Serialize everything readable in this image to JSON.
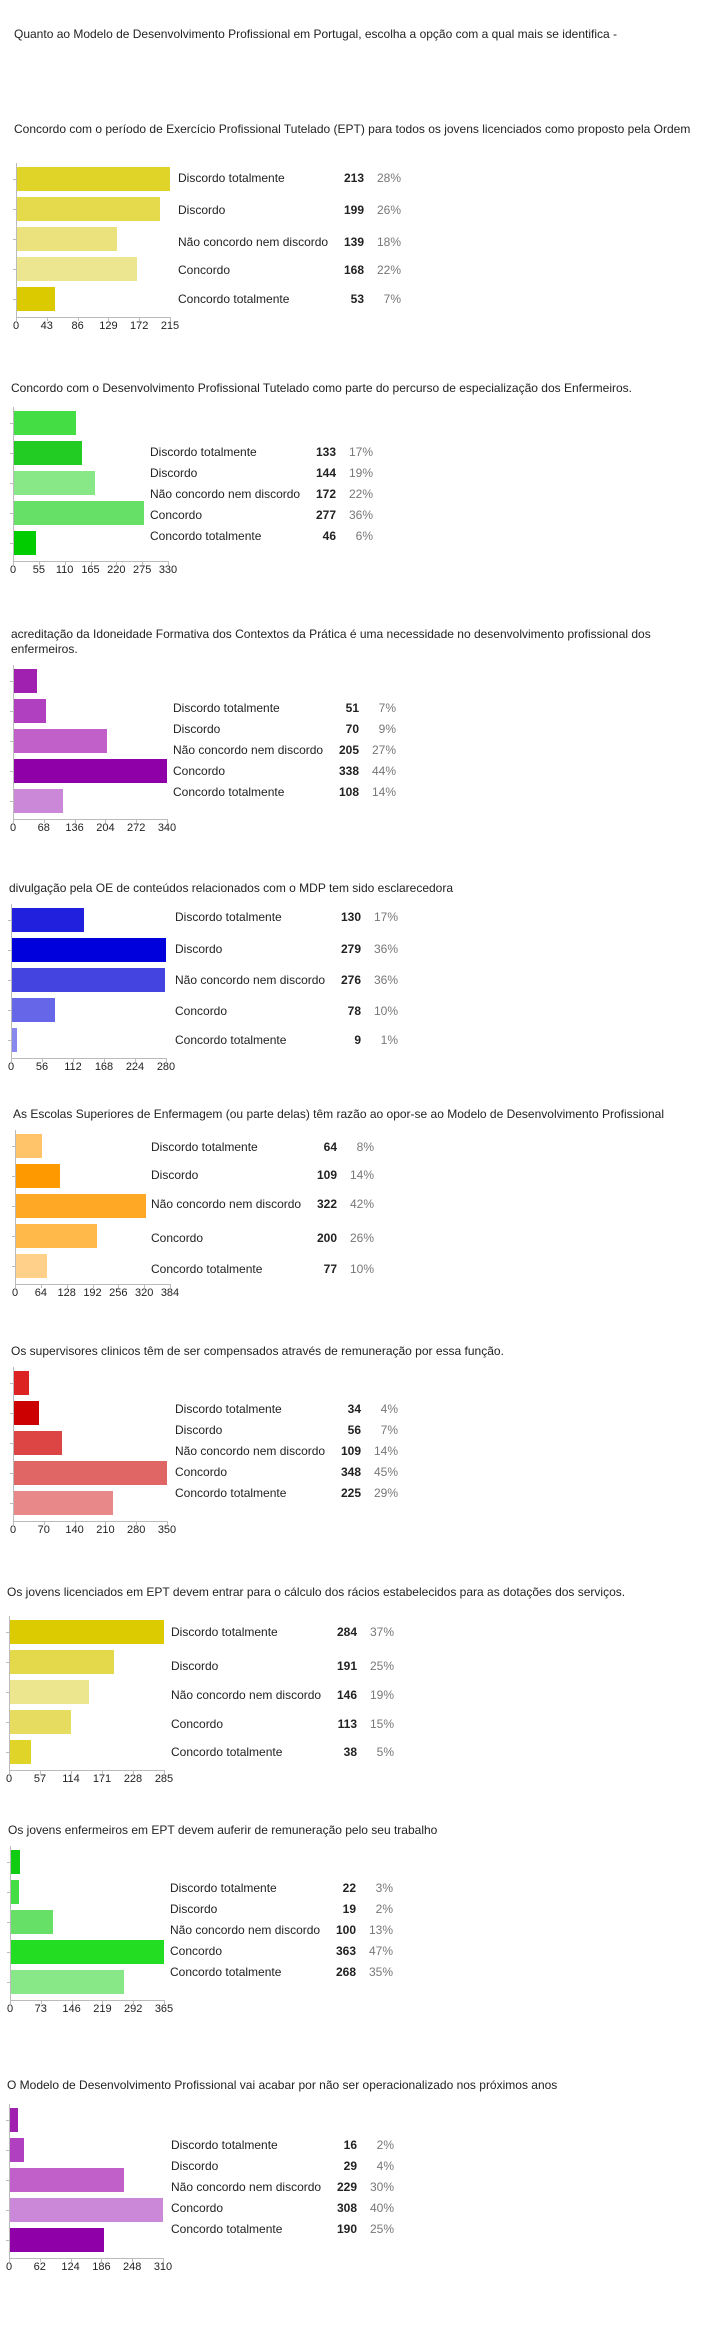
{
  "main_title": "Quanto ao Modelo de Desenvolvimento Profissional em Portugal, escolha a opção com a qual mais se identifica -",
  "chart_data": [
    {
      "type": "bar",
      "orientation": "horizontal",
      "title": "Concordo com o período de Exercício Profissional Tutelado (EPT) para todos os jovens licenciados como proposto pela Ordem",
      "categories": [
        "Discordo totalmente",
        "Discordo",
        "Não concordo nem discordo",
        "Concordo",
        "Concordo totalmente"
      ],
      "values": [
        213,
        199,
        139,
        168,
        53
      ],
      "percents": [
        "28%",
        "26%",
        "18%",
        "22%",
        "7%"
      ],
      "ticks": [
        "0",
        "43",
        "86",
        "129",
        "172",
        "215"
      ],
      "xlim": [
        0,
        215
      ],
      "grid": false,
      "colors": [
        "#e1d428",
        "#e5da4c",
        "#ebe27d",
        "#ede691",
        "#dcca00"
      ]
    },
    {
      "type": "bar",
      "orientation": "horizontal",
      "title": "Concordo com o Desenvolvimento Profissional Tutelado como parte do percurso de especialização dos Enfermeiros.",
      "categories": [
        "Discordo totalmente",
        "Discordo",
        "Não concordo nem discordo",
        "Concordo",
        "Concordo totalmente"
      ],
      "values": [
        133,
        144,
        172,
        277,
        46
      ],
      "percents": [
        "17%",
        "19%",
        "22%",
        "36%",
        "6%"
      ],
      "ticks": [
        "0",
        "55",
        "110",
        "165",
        "220",
        "275",
        "330"
      ],
      "xlim": [
        0,
        330
      ],
      "grid": false,
      "colors": [
        "#44dd44",
        "#22cc22",
        "#88e888",
        "#66e066",
        "#00cc00"
      ]
    },
    {
      "type": "bar",
      "orientation": "horizontal",
      "title": "acreditação da Idoneidade Formativa dos Contextos da Prática é uma necessidade no desenvolvimento profissional dos enfermeiros.",
      "categories": [
        "Discordo totalmente",
        "Discordo",
        "Não concordo nem discordo",
        "Concordo",
        "Concordo totalmente"
      ],
      "values": [
        51,
        70,
        205,
        338,
        108
      ],
      "percents": [
        "7%",
        "9%",
        "27%",
        "44%",
        "14%"
      ],
      "ticks": [
        "0",
        "68",
        "136",
        "204",
        "272",
        "340"
      ],
      "xlim": [
        0,
        340
      ],
      "grid": false,
      "colors": [
        "#a020b0",
        "#b040c0",
        "#c060c8",
        "#9000a8",
        "#cc88d8"
      ]
    },
    {
      "type": "bar",
      "orientation": "horizontal",
      "title": "divulgação pela OE de conteúdos relacionados com o MDP tem sido esclarecedora",
      "categories": [
        "Discordo totalmente",
        "Discordo",
        "Não concordo nem discordo",
        "Concordo",
        "Concordo totalmente"
      ],
      "values": [
        130,
        279,
        276,
        78,
        9
      ],
      "percents": [
        "17%",
        "36%",
        "36%",
        "10%",
        "1%"
      ],
      "ticks": [
        "0",
        "56",
        "112",
        "168",
        "224",
        "280"
      ],
      "xlim": [
        0,
        280
      ],
      "grid": false,
      "colors": [
        "#2020dd",
        "#0000dd",
        "#4444e0",
        "#6666e8",
        "#8888ee"
      ]
    },
    {
      "type": "bar",
      "orientation": "horizontal",
      "title": "As Escolas Superiores de Enfermagem (ou parte delas) têm razão ao opor-se ao Modelo de Desenvolvimento Profissional",
      "categories": [
        "Discordo totalmente",
        "Discordo",
        "Não concordo nem discordo",
        "Concordo",
        "Concordo totalmente"
      ],
      "values": [
        64,
        109,
        322,
        200,
        77
      ],
      "percents": [
        "8%",
        "14%",
        "42%",
        "26%",
        "10%"
      ],
      "ticks": [
        "0",
        "64",
        "128",
        "192",
        "256",
        "320",
        "384"
      ],
      "xlim": [
        0,
        384
      ],
      "grid": false,
      "colors": [
        "#ffc46a",
        "#ff9900",
        "#ffa826",
        "#ffb84a",
        "#ffd08a"
      ]
    },
    {
      "type": "bar",
      "orientation": "horizontal",
      "title": "Os supervisores clinicos têm de ser compensados através de remuneração por essa função.",
      "categories": [
        "Discordo totalmente",
        "Discordo",
        "Não concordo nem discordo",
        "Concordo",
        "Concordo totalmente"
      ],
      "values": [
        34,
        56,
        109,
        348,
        225
      ],
      "percents": [
        "4%",
        "7%",
        "14%",
        "45%",
        "29%"
      ],
      "ticks": [
        "0",
        "70",
        "140",
        "210",
        "280",
        "350"
      ],
      "xlim": [
        0,
        350
      ],
      "grid": false,
      "colors": [
        "#dd2222",
        "#cc0000",
        "#dd4444",
        "#e06666",
        "#e88888"
      ]
    },
    {
      "type": "bar",
      "orientation": "horizontal",
      "title": "Os jovens licenciados em EPT devem entrar para o cálculo dos rácios estabelecidos para as dotações dos serviços.",
      "categories": [
        "Discordo totalmente",
        "Discordo",
        "Não concordo nem discordo",
        "Concordo",
        "Concordo totalmente"
      ],
      "values": [
        284,
        191,
        146,
        113,
        38
      ],
      "percents": [
        "37%",
        "25%",
        "19%",
        "15%",
        "5%"
      ],
      "ticks": [
        "0",
        "57",
        "114",
        "171",
        "228",
        "285"
      ],
      "xlim": [
        0,
        285
      ],
      "grid": false,
      "colors": [
        "#dccb00",
        "#e3d94a",
        "#ece68e",
        "#e6dc60",
        "#e1d428"
      ]
    },
    {
      "type": "bar",
      "orientation": "horizontal",
      "title": "Os jovens enfermeiros em EPT devem auferir de remuneração pelo seu trabalho",
      "categories": [
        "Discordo totalmente",
        "Discordo",
        "Não concordo nem discordo",
        "Concordo",
        "Concordo totalmente"
      ],
      "values": [
        22,
        19,
        100,
        363,
        268
      ],
      "percents": [
        "3%",
        "2%",
        "13%",
        "47%",
        "35%"
      ],
      "ticks": [
        "0",
        "73",
        "146",
        "219",
        "292",
        "365"
      ],
      "xlim": [
        0,
        365
      ],
      "grid": false,
      "colors": [
        "#11cc11",
        "#44dd44",
        "#66e066",
        "#22dd22",
        "#88e888"
      ]
    },
    {
      "type": "bar",
      "orientation": "horizontal",
      "title": "O Modelo de Desenvolvimento Profissional vai acabar por não ser operacionalizado nos próximos anos",
      "categories": [
        "Discordo totalmente",
        "Discordo",
        "Não concordo nem discordo",
        "Concordo",
        "Concordo totalmente"
      ],
      "values": [
        16,
        29,
        229,
        308,
        190
      ],
      "percents": [
        "2%",
        "4%",
        "30%",
        "40%",
        "25%"
      ],
      "ticks": [
        "0",
        "62",
        "124",
        "186",
        "248",
        "310"
      ],
      "xlim": [
        0,
        310
      ],
      "grid": false,
      "colors": [
        "#a020b0",
        "#b040c0",
        "#c060c8",
        "#cc88d8",
        "#9000a8"
      ]
    }
  ]
}
